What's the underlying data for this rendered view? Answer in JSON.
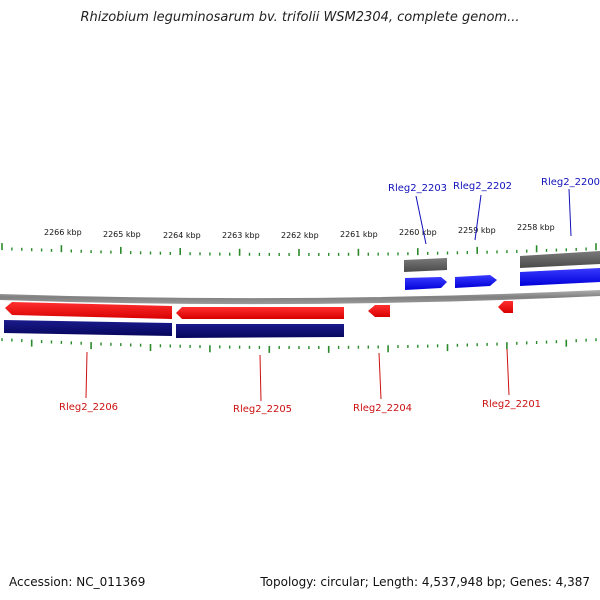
{
  "title": "Rhizobium leguminosarum bv. trifolii WSM2304, complete genom...",
  "scale_labels": [
    "2266 kbp",
    "2265 kbp",
    "2264 kbp",
    "2263 kbp",
    "2262 kbp",
    "2261 kbp",
    "2260 kbp",
    "2259 kbp",
    "2258 kbp"
  ],
  "genes": [
    {
      "name": "Rleg2_2206",
      "strand": "reverse",
      "color": "#cc1111"
    },
    {
      "name": "Rleg2_2205",
      "strand": "reverse",
      "color": "#cc1111"
    },
    {
      "name": "Rleg2_2204",
      "strand": "reverse",
      "color": "#cc1111"
    },
    {
      "name": "Rleg2_2203",
      "strand": "forward",
      "color": "#1111bb"
    },
    {
      "name": "Rleg2_2202",
      "strand": "forward",
      "color": "#1111bb"
    },
    {
      "name": "Rleg2_2201",
      "strand": "reverse",
      "color": "#cc1111"
    },
    {
      "name": "Rleg2_2200",
      "strand": "forward",
      "color": "#1111bb"
    }
  ],
  "colors": {
    "forward_gene": "#0a0af0",
    "reverse_gene": "#ee0d0d",
    "forward_cds": "#666666",
    "reverse_cds": "#0a0a7a",
    "backbone": "#8a8a8a",
    "ticks": "#2a8a2a"
  },
  "footer": {
    "accession": "Accession: NC_011369",
    "summary": "Topology: circular; Length: 4,537,948 bp; Genes: 4,387"
  }
}
